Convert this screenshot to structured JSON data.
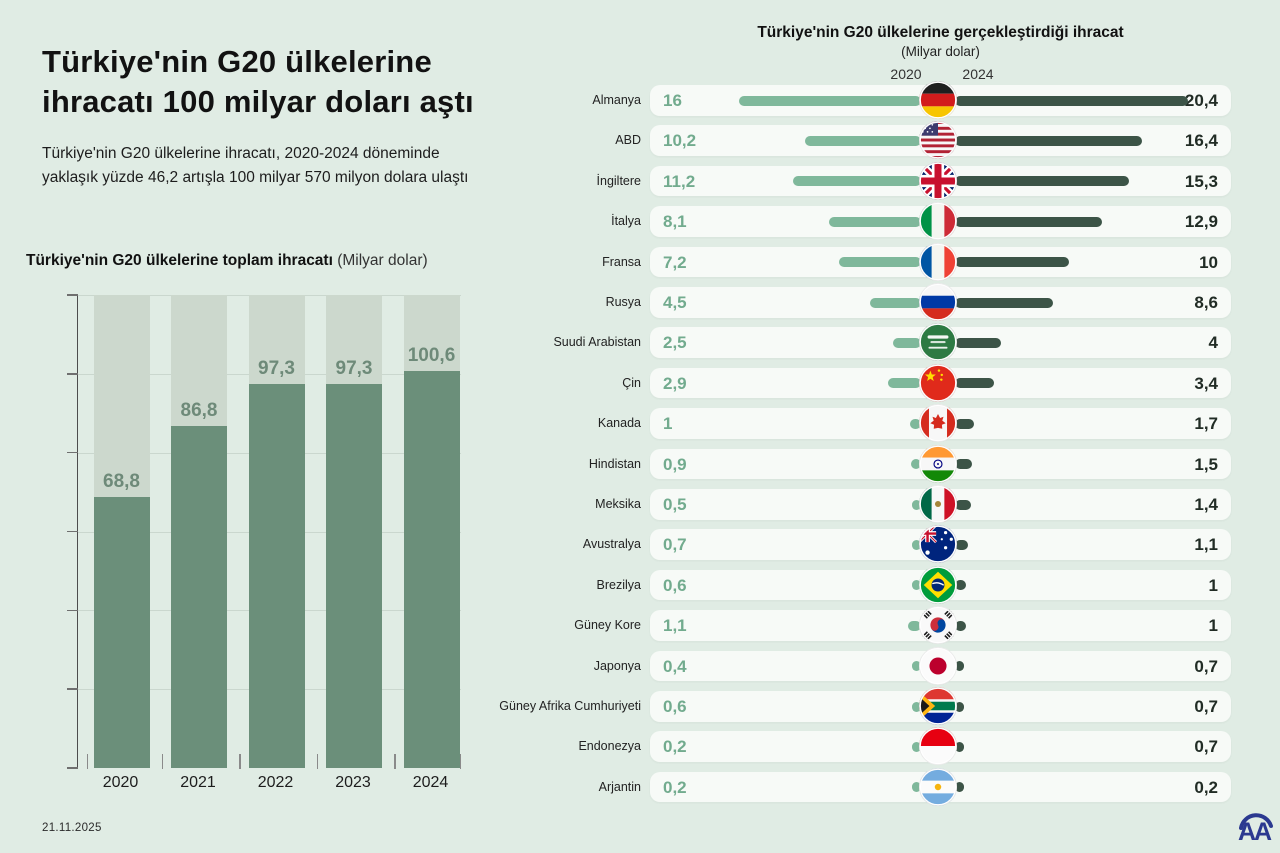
{
  "header": {
    "title": "Türkiye'nin G20 ülkelerine\nihracatı 100 milyar doları aştı",
    "subtitle": "Türkiye'nin G20 ülkelerine ihracatı, 2020-2024 döneminde\nyaklaşık yüzde 46,2 artışla 100 milyar 570 milyon dolara ulaştı"
  },
  "footer": {
    "date": "21.11.2025",
    "agency_logo": "AA"
  },
  "colors": {
    "background": "#e0ece4",
    "column_background": "#ccd8cd",
    "total_bar": "#6b8f7a",
    "total_value_label": "#6e8a79",
    "bar_2020": "#7fb89b",
    "bar_2024": "#3c5447",
    "value_2020_text": "#72ab8e",
    "value_2024_text": "#212c25",
    "row_pill": "#f7faf7",
    "logo_blue": "#2b3990"
  },
  "chart_data": [
    {
      "type": "bar",
      "title": "Türkiye'nin G20 ülkelerine toplam ihracatı",
      "unit_suffix": " (Milyar dolar)",
      "categories": [
        "2020",
        "2021",
        "2022",
        "2023",
        "2024"
      ],
      "values": [
        68.8,
        86.8,
        97.3,
        97.3,
        100.6
      ],
      "value_labels": [
        "68,8",
        "86,8",
        "97,3",
        "97,3",
        "100,6"
      ],
      "ylim": [
        0,
        120
      ],
      "yticks": [
        0,
        20,
        40,
        60,
        80,
        100,
        120
      ],
      "grid": true,
      "legend": "none",
      "xlabel": "",
      "ylabel": ""
    },
    {
      "type": "bar",
      "orientation": "horizontal-mirrored",
      "title": "Türkiye'nin G20 ülkelerine gerçekleştirdiği ihracat",
      "unit_suffix": "(Milyar dolar)",
      "col_headers": [
        "2020",
        "2024"
      ],
      "rows": [
        {
          "country": "Almanya",
          "flag": "flag-germany-icon",
          "code": "de",
          "y2020": 16,
          "y2024": 20.4,
          "label2020": "16",
          "label2024": "20,4"
        },
        {
          "country": "ABD",
          "flag": "flag-usa-icon",
          "code": "us",
          "y2020": 10.2,
          "y2024": 16.4,
          "label2020": "10,2",
          "label2024": "16,4"
        },
        {
          "country": "İngiltere",
          "flag": "flag-uk-icon",
          "code": "gb",
          "y2020": 11.2,
          "y2024": 15.3,
          "label2020": "11,2",
          "label2024": "15,3"
        },
        {
          "country": "İtalya",
          "flag": "flag-italy-icon",
          "code": "it",
          "y2020": 8.1,
          "y2024": 12.9,
          "label2020": "8,1",
          "label2024": "12,9"
        },
        {
          "country": "Fransa",
          "flag": "flag-france-icon",
          "code": "fr",
          "y2020": 7.2,
          "y2024": 10,
          "label2020": "7,2",
          "label2024": "10"
        },
        {
          "country": "Rusya",
          "flag": "flag-russia-icon",
          "code": "ru",
          "y2020": 4.5,
          "y2024": 8.6,
          "label2020": "4,5",
          "label2024": "8,6"
        },
        {
          "country": "Suudi Arabistan",
          "flag": "flag-saudi-arabia-icon",
          "code": "sa",
          "y2020": 2.5,
          "y2024": 4,
          "label2020": "2,5",
          "label2024": "4"
        },
        {
          "country": "Çin",
          "flag": "flag-china-icon",
          "code": "cn",
          "y2020": 2.9,
          "y2024": 3.4,
          "label2020": "2,9",
          "label2024": "3,4"
        },
        {
          "country": "Kanada",
          "flag": "flag-canada-icon",
          "code": "ca",
          "y2020": 1,
          "y2024": 1.7,
          "label2020": "1",
          "label2024": "1,7"
        },
        {
          "country": "Hindistan",
          "flag": "flag-india-icon",
          "code": "in",
          "y2020": 0.9,
          "y2024": 1.5,
          "label2020": "0,9",
          "label2024": "1,5"
        },
        {
          "country": "Meksika",
          "flag": "flag-mexico-icon",
          "code": "mx",
          "y2020": 0.5,
          "y2024": 1.4,
          "label2020": "0,5",
          "label2024": "1,4"
        },
        {
          "country": "Avustralya",
          "flag": "flag-australia-icon",
          "code": "au",
          "y2020": 0.7,
          "y2024": 1.1,
          "label2020": "0,7",
          "label2024": "1,1"
        },
        {
          "country": "Brezilya",
          "flag": "flag-brazil-icon",
          "code": "br",
          "y2020": 0.6,
          "y2024": 1,
          "label2020": "0,6",
          "label2024": "1"
        },
        {
          "country": "Güney Kore",
          "flag": "flag-south-korea-icon",
          "code": "kr",
          "y2020": 1.1,
          "y2024": 1,
          "label2020": "1,1",
          "label2024": "1"
        },
        {
          "country": "Japonya",
          "flag": "flag-japan-icon",
          "code": "jp",
          "y2020": 0.4,
          "y2024": 0.7,
          "label2020": "0,4",
          "label2024": "0,7"
        },
        {
          "country": "Güney Afrika Cumhuriyeti",
          "flag": "flag-south-africa-icon",
          "code": "za",
          "y2020": 0.6,
          "y2024": 0.7,
          "label2020": "0,6",
          "label2024": "0,7"
        },
        {
          "country": "Endonezya",
          "flag": "flag-indonesia-icon",
          "code": "id",
          "y2020": 0.2,
          "y2024": 0.7,
          "label2020": "0,2",
          "label2024": "0,7"
        },
        {
          "country": "Arjantin",
          "flag": "flag-argentina-icon",
          "code": "ar",
          "y2020": 0.2,
          "y2024": 0.2,
          "label2020": "0,2",
          "label2024": "0,2"
        }
      ]
    }
  ]
}
